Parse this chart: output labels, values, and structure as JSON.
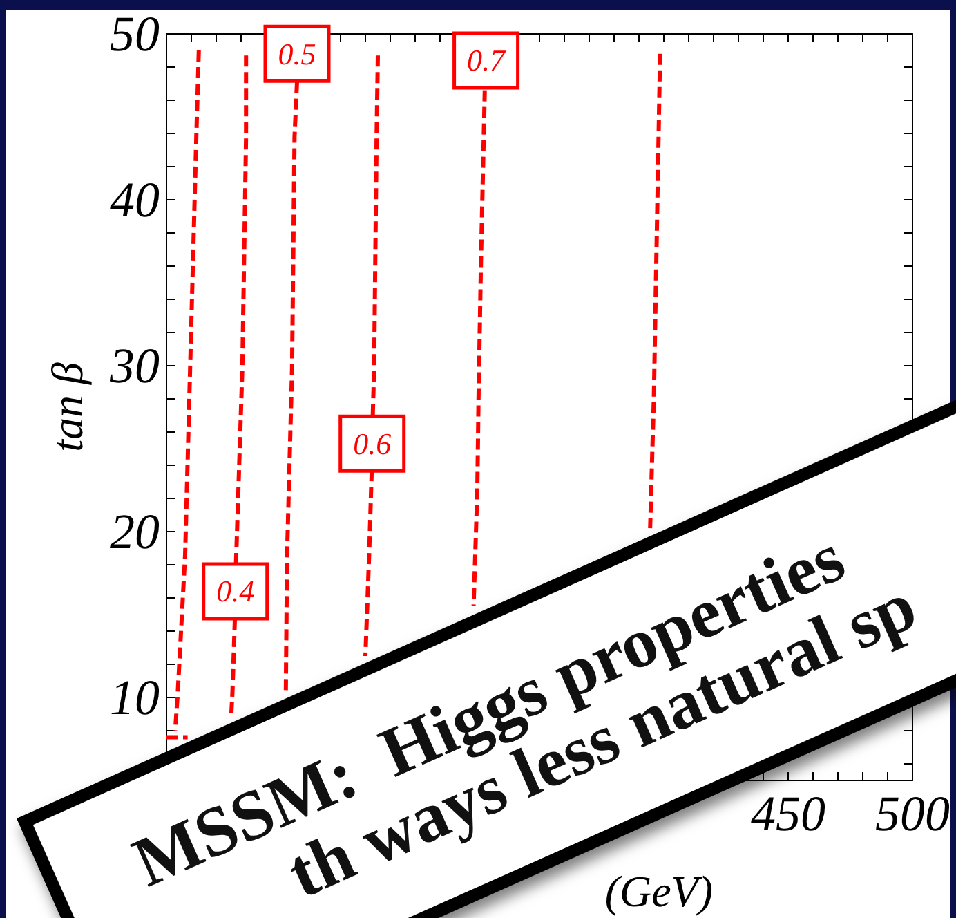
{
  "chart_data": {
    "type": "line",
    "xlabel": "(GeV)",
    "ylabel": "tan β",
    "xlim": [
      200,
      500
    ],
    "xticks": [
      {
        "value": 200,
        "label": null
      },
      {
        "value": 210,
        "label": null
      },
      {
        "value": 220,
        "label": null
      },
      {
        "value": 230,
        "label": null
      },
      {
        "value": 240,
        "label": null
      },
      {
        "value": 250,
        "label": null
      },
      {
        "value": 260,
        "label": null
      },
      {
        "value": 270,
        "label": null
      },
      {
        "value": 280,
        "label": null
      },
      {
        "value": 290,
        "label": null
      },
      {
        "value": 300,
        "label": null
      },
      {
        "value": 310,
        "label": null
      },
      {
        "value": 320,
        "label": null
      },
      {
        "value": 330,
        "label": null
      },
      {
        "value": 340,
        "label": null
      },
      {
        "value": 350,
        "label": null
      },
      {
        "value": 360,
        "label": null
      },
      {
        "value": 370,
        "label": null
      },
      {
        "value": 380,
        "label": null
      },
      {
        "value": 390,
        "label": null
      },
      {
        "value": 400,
        "label": null
      },
      {
        "value": 410,
        "label": null
      },
      {
        "value": 420,
        "label": null
      },
      {
        "value": 430,
        "label": null
      },
      {
        "value": 440,
        "label": null
      },
      450,
      {
        "value": 460,
        "label": null
      },
      {
        "value": 470,
        "label": null
      },
      {
        "value": 480,
        "label": null
      },
      {
        "value": 490,
        "label": null
      },
      500
    ],
    "ylim": [
      5,
      50
    ],
    "yticks": [
      {
        "value": 6,
        "label": null
      },
      {
        "value": 8,
        "label": null
      },
      10,
      {
        "value": 12,
        "label": null
      },
      {
        "value": 14,
        "label": null
      },
      {
        "value": 16,
        "label": null
      },
      {
        "value": 18,
        "label": null
      },
      20,
      {
        "value": 22,
        "label": null
      },
      {
        "value": 24,
        "label": null
      },
      {
        "value": 26,
        "label": null
      },
      {
        "value": 28,
        "label": null
      },
      30,
      {
        "value": 32,
        "label": null
      },
      {
        "value": 34,
        "label": null
      },
      {
        "value": 36,
        "label": null
      },
      {
        "value": 38,
        "label": null
      },
      40,
      {
        "value": 42,
        "label": null
      },
      {
        "value": 44,
        "label": null
      },
      {
        "value": 46,
        "label": null
      },
      {
        "value": 48,
        "label": null
      },
      50
    ],
    "line_style": "dashed",
    "series": [
      {
        "color": "#ff0000",
        "x": [
          213,
          212,
          209.5,
          207.5,
          204.5,
          203.5
        ],
        "values": [
          49.0,
          43.8,
          29.8,
          18.6,
          10.2,
          8.0
        ]
      },
      {
        "color": "#ff0000",
        "x": [
          200,
          208.5
        ],
        "values": [
          7.6,
          7.6
        ]
      },
      {
        "color": "#ff0000",
        "x": [
          232,
          232,
          230.5,
          228,
          227.5,
          226.5,
          226
        ],
        "values": [
          48.7,
          43.8,
          29.8,
          18.3,
          14.7,
          10.2,
          8.8
        ]
      },
      {
        "color": "#ff0000",
        "x": [
          252.5,
          251.5,
          250.5,
          248.5,
          248
        ],
        "values": [
          47.1,
          43.8,
          29.8,
          18.6,
          10.4
        ]
      },
      {
        "color": "#ff0000",
        "x": [
          285,
          284.5,
          283.5,
          283,
          282.5,
          281.5,
          280
        ],
        "values": [
          48.7,
          43.8,
          29.8,
          27.2,
          23.5,
          18.6,
          12.5
        ]
      },
      {
        "color": "#ff0000",
        "x": [
          328,
          326.5,
          325.5,
          325,
          323.5
        ],
        "values": [
          46.6,
          36.5,
          28.1,
          22.5,
          15.5
        ]
      },
      {
        "color": "#ff0000",
        "x": [
          398.5,
          397,
          396,
          394.5
        ],
        "values": [
          48.8,
          36.5,
          28.1,
          20.2
        ]
      }
    ],
    "annotations": [
      {
        "text": "0.4",
        "x": 227.7,
        "y": 16.4
      },
      {
        "text": "0.5",
        "x": 252.5,
        "y": 48.8
      },
      {
        "text": "0.6",
        "x": 282.7,
        "y": 25.3
      },
      {
        "text": "0.7",
        "x": 328.5,
        "y": 48.4
      },
      "MSSM:  Higgs properties",
      "th ways less natural sp"
    ]
  }
}
